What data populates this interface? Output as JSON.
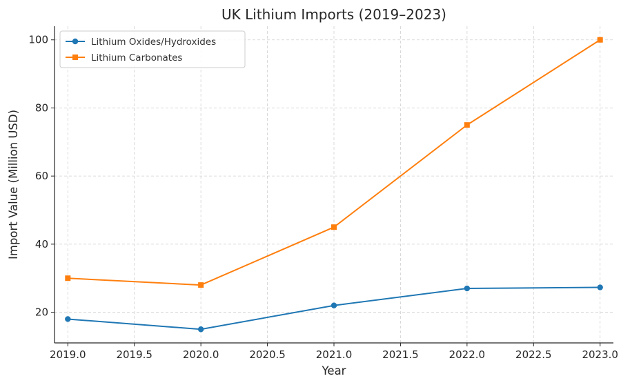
{
  "chart_data": {
    "type": "line",
    "title": "UK Lithium Imports (2019–2023)",
    "xlabel": "Year",
    "ylabel": "Import Value (Million USD)",
    "x": [
      2019,
      2020,
      2021,
      2022,
      2023
    ],
    "xlim": [
      2018.9,
      2023.1
    ],
    "ylim": [
      11,
      104
    ],
    "xticks": [
      2019.0,
      2019.5,
      2020.0,
      2020.5,
      2021.0,
      2021.5,
      2022.0,
      2022.5,
      2023.0
    ],
    "xtick_labels": [
      "2019.0",
      "2019.5",
      "2020.0",
      "2020.5",
      "2021.0",
      "2021.5",
      "2022.0",
      "2022.5",
      "2023.0"
    ],
    "yticks": [
      20,
      40,
      60,
      80,
      100
    ],
    "ytick_labels": [
      "20",
      "40",
      "60",
      "80",
      "100"
    ],
    "grid": true,
    "legend_position": "top-left",
    "series": [
      {
        "name": "Lithium Oxides/Hydroxides",
        "values": [
          18,
          15,
          22,
          27,
          27.3
        ],
        "color": "#1f77b4",
        "marker": "circle"
      },
      {
        "name": "Lithium Carbonates",
        "values": [
          30,
          28,
          45,
          75,
          100
        ],
        "color": "#ff7f0e",
        "marker": "square"
      }
    ]
  }
}
